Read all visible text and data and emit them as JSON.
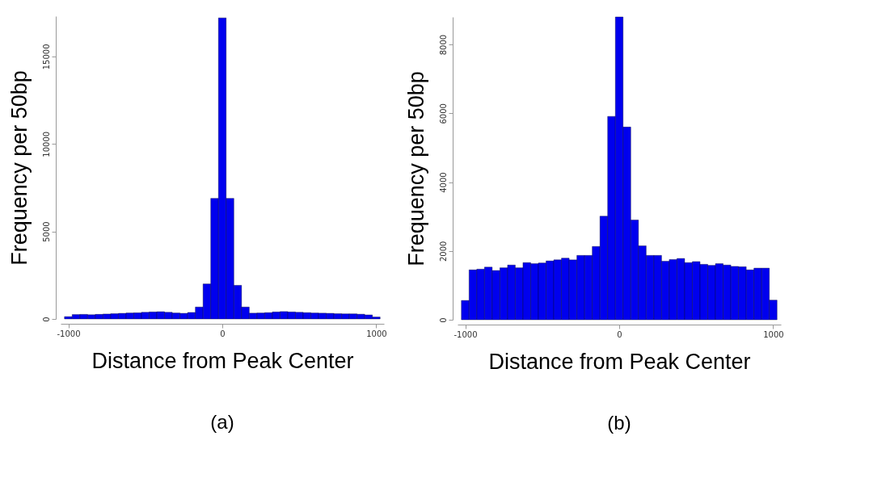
{
  "chart_data": [
    {
      "type": "histogram",
      "xlabel": "Distance from Peak Center",
      "ylabel": "Frequency per 50bp",
      "annotations": [
        "(a)"
      ],
      "color": "#0000ee",
      "bins": [
        -1025,
        -975,
        -925,
        -875,
        -825,
        -775,
        -725,
        -675,
        -625,
        -575,
        -525,
        -475,
        -425,
        -375,
        -325,
        -275,
        -225,
        -175,
        -125,
        -75,
        -25,
        25,
        75,
        125,
        175,
        225,
        275,
        325,
        375,
        425,
        475,
        525,
        575,
        625,
        675,
        725,
        775,
        825,
        875,
        925,
        975,
        1025
      ],
      "values": [
        130,
        250,
        260,
        240,
        260,
        280,
        300,
        320,
        340,
        350,
        380,
        400,
        410,
        380,
        340,
        320,
        370,
        680,
        2000,
        6890,
        17200,
        6890,
        1920,
        680,
        330,
        340,
        360,
        400,
        420,
        400,
        380,
        360,
        340,
        330,
        320,
        300,
        290,
        290,
        270,
        230,
        110
      ],
      "xlim": [
        -1050,
        1050
      ],
      "xticks": [
        -1000,
        0,
        1000
      ],
      "ylim": [
        0,
        17300
      ],
      "yticks": [
        0,
        5000,
        10000,
        15000
      ],
      "grid": false
    },
    {
      "type": "histogram",
      "xlabel": "Distance from Peak Center",
      "ylabel": "Frequency per 50bp",
      "annotations": [
        "(b)"
      ],
      "color": "#0000ee",
      "bins": [
        -1025,
        -975,
        -925,
        -875,
        -825,
        -775,
        -725,
        -675,
        -625,
        -575,
        -525,
        -475,
        -425,
        -375,
        -325,
        -275,
        -225,
        -175,
        -125,
        -75,
        -25,
        25,
        75,
        125,
        175,
        225,
        275,
        325,
        375,
        425,
        475,
        525,
        575,
        625,
        675,
        725,
        775,
        825,
        875,
        925,
        975,
        1025
      ],
      "values": [
        560,
        1450,
        1470,
        1530,
        1430,
        1510,
        1590,
        1510,
        1660,
        1630,
        1650,
        1710,
        1740,
        1790,
        1740,
        1870,
        1870,
        2130,
        3010,
        5910,
        8800,
        5600,
        2900,
        2150,
        1870,
        1870,
        1700,
        1750,
        1780,
        1660,
        1690,
        1610,
        1580,
        1630,
        1590,
        1550,
        1540,
        1450,
        1500,
        1500,
        570
      ],
      "xlim": [
        -1050,
        1050
      ],
      "xticks": [
        -1000,
        0,
        1000
      ],
      "ylim": [
        0,
        8800
      ],
      "yticks": [
        0,
        2000,
        4000,
        6000,
        8000
      ],
      "grid": false
    }
  ]
}
